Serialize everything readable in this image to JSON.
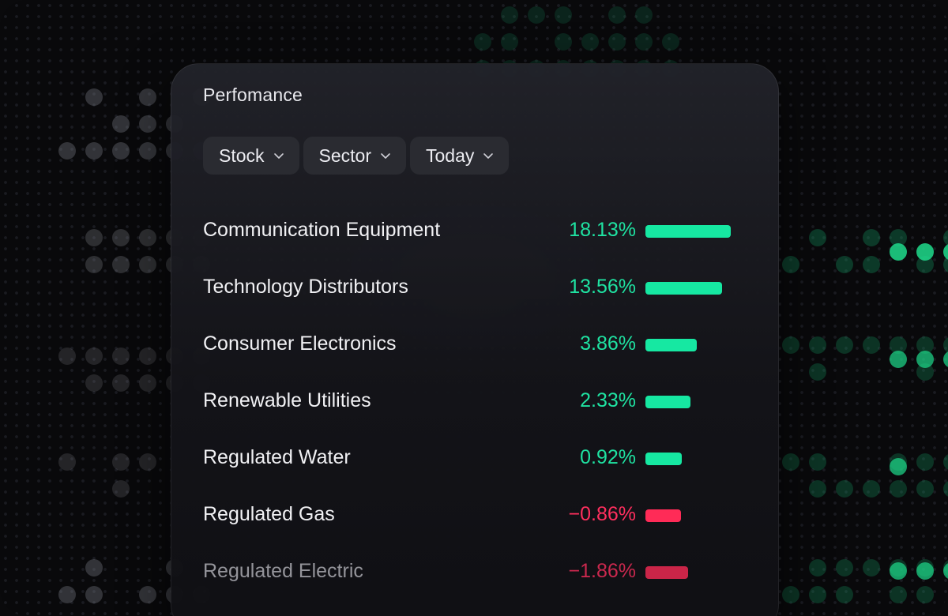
{
  "panel": {
    "title": "Perfomance"
  },
  "filters": [
    {
      "label": "Stock",
      "icon": "chevron-down-icon"
    },
    {
      "label": "Sector",
      "icon": "chevron-down-icon"
    },
    {
      "label": "Today",
      "icon": "chevron-down-icon"
    }
  ],
  "rows": [
    {
      "label": "Communication Equipment",
      "value": "18.13%",
      "percent": 18.13,
      "direction": "up"
    },
    {
      "label": "Technology Distributors",
      "value": "13.56%",
      "percent": 13.56,
      "direction": "up"
    },
    {
      "label": "Consumer Electronics",
      "value": "3.86%",
      "percent": 3.86,
      "direction": "up"
    },
    {
      "label": "Renewable Utilities",
      "value": "2.33%",
      "percent": 2.33,
      "direction": "up"
    },
    {
      "label": "Regulated Water",
      "value": "0.92%",
      "percent": 0.92,
      "direction": "up"
    },
    {
      "label": "Regulated Gas",
      "value": "−0.86%",
      "percent": -0.86,
      "direction": "down"
    },
    {
      "label": "Regulated Electric",
      "value": "−1.86%",
      "percent": -1.86,
      "direction": "down"
    }
  ],
  "colors": {
    "positive": "#1fe3a2",
    "negative": "#ff2f5e",
    "background": "#09090b",
    "card": "#1b1c22"
  }
}
